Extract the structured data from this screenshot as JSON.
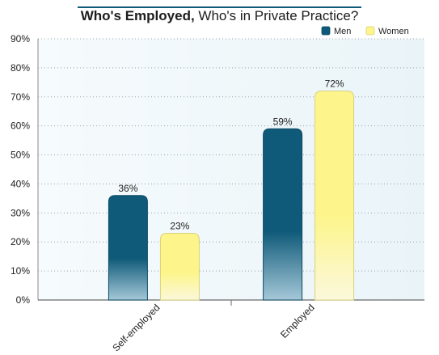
{
  "chart_data": {
    "type": "bar",
    "title_bold": "Who's Employed,",
    "title_rest": " Who's in Private Practice?",
    "categories": [
      "Self-employed",
      "Employed"
    ],
    "series": [
      {
        "name": "Men",
        "values": [
          36,
          59
        ],
        "color": "#0f5a79"
      },
      {
        "name": "Women",
        "values": [
          23,
          72
        ],
        "color": "#fdf58c"
      }
    ],
    "value_suffix": "%",
    "ylim": [
      0,
      90
    ],
    "yticks": [
      0,
      10,
      20,
      30,
      40,
      50,
      60,
      70,
      80,
      90
    ],
    "ytick_labels": [
      "0%",
      "10%",
      "20%",
      "30%",
      "40%",
      "50%",
      "60%",
      "70%",
      "80%",
      "90%"
    ],
    "grid": true,
    "legend_position": "top-right"
  }
}
